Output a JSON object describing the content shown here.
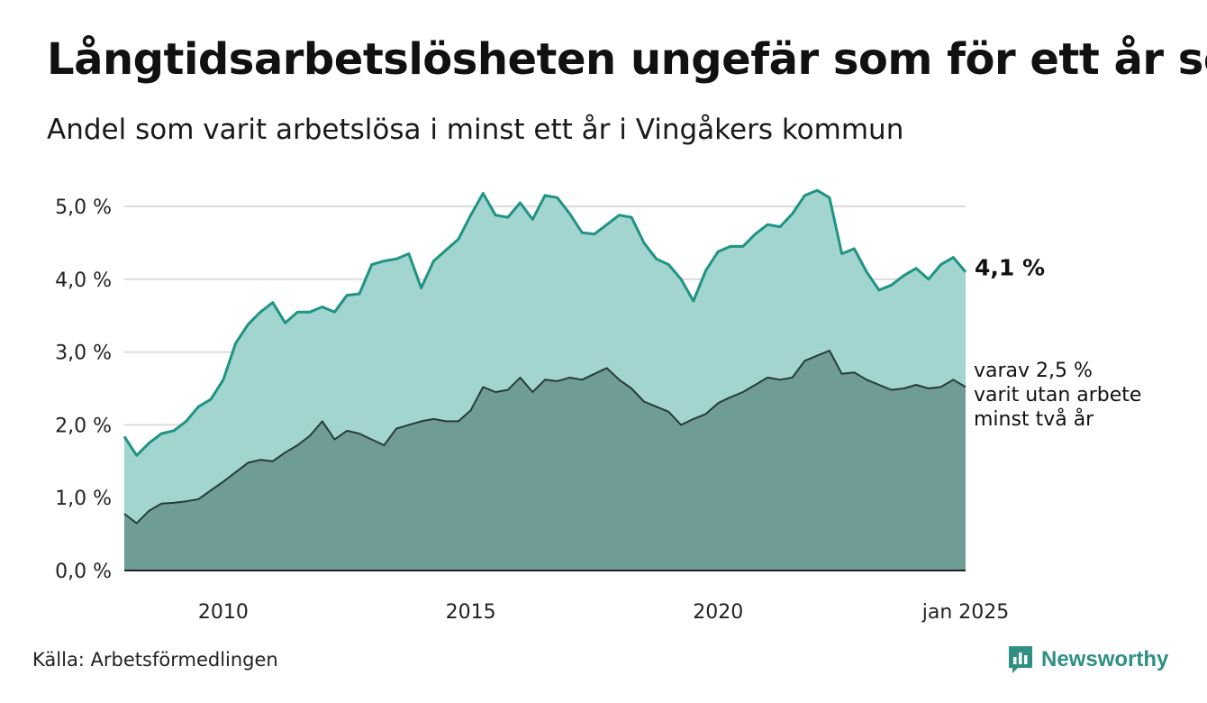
{
  "header": {
    "title": "Långtidsarbetslösheten ungefär som för ett år sen",
    "subtitle": "Andel som varit arbetslösa i minst ett år i Vingåkers kommun"
  },
  "footer": {
    "source": "Källa: Arbetsförmedlingen",
    "brand": "Newsworthy"
  },
  "colors": {
    "total_line": "#1f9384",
    "total_fill": "#a2d5cf",
    "sub_line": "#263c39",
    "sub_fill": "#6f9c96",
    "grid": "#dcdcdc",
    "brand": "#2f8f83"
  },
  "chart_data": {
    "type": "area",
    "ylim": [
      0,
      5.0
    ],
    "y_ticks": [
      {
        "value": 0,
        "label": "0,0 %"
      },
      {
        "value": 1,
        "label": "1,0 %"
      },
      {
        "value": 2,
        "label": "2,0 %"
      },
      {
        "value": 3,
        "label": "3,0 %"
      },
      {
        "value": 4,
        "label": "4,0 %"
      },
      {
        "value": 5,
        "label": "5,0 %"
      }
    ],
    "x_ticks": [
      {
        "value": "2010-01",
        "label": "2010"
      },
      {
        "value": "2015-01",
        "label": "2015"
      },
      {
        "value": "2020-01",
        "label": "2020"
      },
      {
        "value": "2025-01",
        "label": "jan 2025"
      }
    ],
    "grid": true,
    "end_label": "4,1 %",
    "annotation": [
      "varav 2,5 %",
      "varit utan arbete",
      "minst två år"
    ],
    "series": [
      {
        "points": [
          [
            "2008-01",
            1.84
          ],
          [
            "2008-04",
            1.58
          ],
          [
            "2008-07",
            1.75
          ],
          [
            "2008-10",
            1.88
          ],
          [
            "2009-01",
            1.92
          ],
          [
            "2009-04",
            2.05
          ],
          [
            "2009-07",
            2.25
          ],
          [
            "2009-10",
            2.35
          ],
          [
            "2010-01",
            2.62
          ],
          [
            "2010-04",
            3.12
          ],
          [
            "2010-07",
            3.38
          ],
          [
            "2010-10",
            3.55
          ],
          [
            "2011-01",
            3.68
          ],
          [
            "2011-04",
            3.4
          ],
          [
            "2011-07",
            3.55
          ],
          [
            "2011-10",
            3.55
          ],
          [
            "2012-01",
            3.62
          ],
          [
            "2012-04",
            3.55
          ],
          [
            "2012-07",
            3.78
          ],
          [
            "2012-10",
            3.8
          ],
          [
            "2013-01",
            4.2
          ],
          [
            "2013-04",
            4.25
          ],
          [
            "2013-07",
            4.28
          ],
          [
            "2013-10",
            4.35
          ],
          [
            "2014-01",
            3.88
          ],
          [
            "2014-04",
            4.25
          ],
          [
            "2014-07",
            4.4
          ],
          [
            "2014-10",
            4.55
          ],
          [
            "2015-01",
            4.88
          ],
          [
            "2015-04",
            5.18
          ],
          [
            "2015-07",
            4.88
          ],
          [
            "2015-10",
            4.85
          ],
          [
            "2016-01",
            5.05
          ],
          [
            "2016-04",
            4.82
          ],
          [
            "2016-07",
            5.15
          ],
          [
            "2016-10",
            5.12
          ],
          [
            "2017-01",
            4.9
          ],
          [
            "2017-04",
            4.64
          ],
          [
            "2017-07",
            4.62
          ],
          [
            "2017-10",
            4.75
          ],
          [
            "2018-01",
            4.88
          ],
          [
            "2018-04",
            4.85
          ],
          [
            "2018-07",
            4.5
          ],
          [
            "2018-10",
            4.28
          ],
          [
            "2019-01",
            4.2
          ],
          [
            "2019-04",
            4.0
          ],
          [
            "2019-07",
            3.7
          ],
          [
            "2019-10",
            4.12
          ],
          [
            "2020-01",
            4.38
          ],
          [
            "2020-04",
            4.45
          ],
          [
            "2020-07",
            4.45
          ],
          [
            "2020-10",
            4.62
          ],
          [
            "2021-01",
            4.75
          ],
          [
            "2021-04",
            4.72
          ],
          [
            "2021-07",
            4.9
          ],
          [
            "2021-10",
            5.15
          ],
          [
            "2022-01",
            5.22
          ],
          [
            "2022-04",
            5.12
          ],
          [
            "2022-07",
            4.35
          ],
          [
            "2022-10",
            4.42
          ],
          [
            "2023-01",
            4.1
          ],
          [
            "2023-04",
            3.85
          ],
          [
            "2023-07",
            3.92
          ],
          [
            "2023-10",
            4.05
          ],
          [
            "2024-01",
            4.15
          ],
          [
            "2024-04",
            4.0
          ],
          [
            "2024-07",
            4.2
          ],
          [
            "2024-10",
            4.3
          ],
          [
            "2025-01",
            4.1
          ]
        ]
      },
      {
        "points": [
          [
            "2008-01",
            0.78
          ],
          [
            "2008-04",
            0.65
          ],
          [
            "2008-07",
            0.82
          ],
          [
            "2008-10",
            0.92
          ],
          [
            "2009-01",
            0.93
          ],
          [
            "2009-04",
            0.95
          ],
          [
            "2009-07",
            0.98
          ],
          [
            "2009-10",
            1.1
          ],
          [
            "2010-01",
            1.22
          ],
          [
            "2010-04",
            1.35
          ],
          [
            "2010-07",
            1.48
          ],
          [
            "2010-10",
            1.52
          ],
          [
            "2011-01",
            1.5
          ],
          [
            "2011-04",
            1.62
          ],
          [
            "2011-07",
            1.72
          ],
          [
            "2011-10",
            1.85
          ],
          [
            "2012-01",
            2.05
          ],
          [
            "2012-04",
            1.8
          ],
          [
            "2012-07",
            1.92
          ],
          [
            "2012-10",
            1.88
          ],
          [
            "2013-01",
            1.8
          ],
          [
            "2013-04",
            1.72
          ],
          [
            "2013-07",
            1.95
          ],
          [
            "2013-10",
            2.0
          ],
          [
            "2014-01",
            2.05
          ],
          [
            "2014-04",
            2.08
          ],
          [
            "2014-07",
            2.05
          ],
          [
            "2014-10",
            2.05
          ],
          [
            "2015-01",
            2.2
          ],
          [
            "2015-04",
            2.52
          ],
          [
            "2015-07",
            2.45
          ],
          [
            "2015-10",
            2.48
          ],
          [
            "2016-01",
            2.65
          ],
          [
            "2016-04",
            2.45
          ],
          [
            "2016-07",
            2.62
          ],
          [
            "2016-10",
            2.6
          ],
          [
            "2017-01",
            2.65
          ],
          [
            "2017-04",
            2.62
          ],
          [
            "2017-07",
            2.7
          ],
          [
            "2017-10",
            2.78
          ],
          [
            "2018-01",
            2.62
          ],
          [
            "2018-04",
            2.5
          ],
          [
            "2018-07",
            2.32
          ],
          [
            "2018-10",
            2.25
          ],
          [
            "2019-01",
            2.18
          ],
          [
            "2019-04",
            2.0
          ],
          [
            "2019-07",
            2.08
          ],
          [
            "2019-10",
            2.15
          ],
          [
            "2020-01",
            2.3
          ],
          [
            "2020-04",
            2.38
          ],
          [
            "2020-07",
            2.45
          ],
          [
            "2020-10",
            2.55
          ],
          [
            "2021-01",
            2.65
          ],
          [
            "2021-04",
            2.62
          ],
          [
            "2021-07",
            2.65
          ],
          [
            "2021-10",
            2.88
          ],
          [
            "2022-01",
            2.95
          ],
          [
            "2022-04",
            3.02
          ],
          [
            "2022-07",
            2.7
          ],
          [
            "2022-10",
            2.72
          ],
          [
            "2023-01",
            2.62
          ],
          [
            "2023-04",
            2.55
          ],
          [
            "2023-07",
            2.48
          ],
          [
            "2023-10",
            2.5
          ],
          [
            "2024-01",
            2.55
          ],
          [
            "2024-04",
            2.5
          ],
          [
            "2024-07",
            2.52
          ],
          [
            "2024-10",
            2.62
          ],
          [
            "2025-01",
            2.52
          ]
        ]
      }
    ]
  }
}
